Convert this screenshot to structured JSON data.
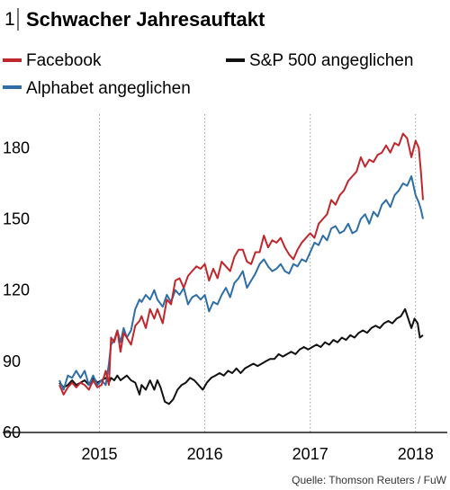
{
  "chart_data": {
    "type": "line",
    "figure_number": "1",
    "title": "Schwacher Jahresauftakt",
    "source": "Quelle: Thomson Reuters / FuW",
    "ylim": [
      60,
      190
    ],
    "yticks": [
      60,
      90,
      120,
      150,
      180
    ],
    "xlim": [
      2014.6,
      2018.15
    ],
    "xticks": [
      {
        "label": "2015",
        "x": 2015.0
      },
      {
        "label": "2016",
        "x": 2016.0
      },
      {
        "label": "2017",
        "x": 2017.0
      },
      {
        "label": "2018",
        "x": 2018.0
      }
    ],
    "grid": "vertical-at-ticks",
    "legend_position": "top",
    "series": [
      {
        "name": "Facebook",
        "color": "#c0272d",
        "points": [
          [
            2014.62,
            80
          ],
          [
            2014.66,
            76
          ],
          [
            2014.7,
            79
          ],
          [
            2014.74,
            81
          ],
          [
            2014.78,
            79
          ],
          [
            2014.82,
            81
          ],
          [
            2014.86,
            80
          ],
          [
            2014.9,
            78
          ],
          [
            2014.94,
            82
          ],
          [
            2014.98,
            79
          ],
          [
            2015.02,
            80
          ],
          [
            2015.06,
            86
          ],
          [
            2015.09,
            80
          ],
          [
            2015.11,
            100
          ],
          [
            2015.14,
            98
          ],
          [
            2015.17,
            103
          ],
          [
            2015.2,
            94
          ],
          [
            2015.23,
            102
          ],
          [
            2015.26,
            100
          ],
          [
            2015.3,
            97
          ],
          [
            2015.34,
            105
          ],
          [
            2015.38,
            107
          ],
          [
            2015.4,
            109
          ],
          [
            2015.44,
            104
          ],
          [
            2015.48,
            112
          ],
          [
            2015.52,
            108
          ],
          [
            2015.55,
            112
          ],
          [
            2015.6,
            106
          ],
          [
            2015.64,
            116
          ],
          [
            2015.68,
            114
          ],
          [
            2015.72,
            124
          ],
          [
            2015.76,
            125
          ],
          [
            2015.8,
            121
          ],
          [
            2015.84,
            126
          ],
          [
            2015.88,
            128
          ],
          [
            2015.92,
            130
          ],
          [
            2015.96,
            129
          ],
          [
            2016.0,
            131
          ],
          [
            2016.04,
            124
          ],
          [
            2016.08,
            129
          ],
          [
            2016.12,
            125
          ],
          [
            2016.16,
            132
          ],
          [
            2016.2,
            130
          ],
          [
            2016.24,
            128
          ],
          [
            2016.28,
            134
          ],
          [
            2016.32,
            137
          ],
          [
            2016.36,
            137
          ],
          [
            2016.4,
            132
          ],
          [
            2016.44,
            131
          ],
          [
            2016.48,
            136
          ],
          [
            2016.52,
            136
          ],
          [
            2016.56,
            143
          ],
          [
            2016.6,
            138
          ],
          [
            2016.64,
            141
          ],
          [
            2016.68,
            140
          ],
          [
            2016.72,
            142
          ],
          [
            2016.76,
            138
          ],
          [
            2016.8,
            135
          ],
          [
            2016.84,
            133
          ],
          [
            2016.88,
            137
          ],
          [
            2016.92,
            140
          ],
          [
            2016.96,
            142
          ],
          [
            2017.0,
            144
          ],
          [
            2017.04,
            142
          ],
          [
            2017.08,
            148
          ],
          [
            2017.12,
            150
          ],
          [
            2017.16,
            152
          ],
          [
            2017.2,
            158
          ],
          [
            2017.24,
            156
          ],
          [
            2017.28,
            160
          ],
          [
            2017.32,
            162
          ],
          [
            2017.36,
            166
          ],
          [
            2017.4,
            168
          ],
          [
            2017.44,
            170
          ],
          [
            2017.48,
            176
          ],
          [
            2017.52,
            172
          ],
          [
            2017.56,
            175
          ],
          [
            2017.6,
            174
          ],
          [
            2017.64,
            177
          ],
          [
            2017.68,
            178
          ],
          [
            2017.72,
            181
          ],
          [
            2017.76,
            178
          ],
          [
            2017.8,
            182
          ],
          [
            2017.84,
            181
          ],
          [
            2017.88,
            186
          ],
          [
            2017.92,
            184
          ],
          [
            2017.96,
            176
          ],
          [
            2018.0,
            183
          ],
          [
            2018.03,
            180
          ],
          [
            2018.05,
            170
          ],
          [
            2018.07,
            158
          ]
        ]
      },
      {
        "name": "Alphabet angeglichen",
        "color": "#2e6ea6",
        "points": [
          [
            2014.62,
            82
          ],
          [
            2014.66,
            78
          ],
          [
            2014.7,
            84
          ],
          [
            2014.74,
            83
          ],
          [
            2014.78,
            86
          ],
          [
            2014.82,
            83
          ],
          [
            2014.86,
            86
          ],
          [
            2014.9,
            80
          ],
          [
            2014.94,
            84
          ],
          [
            2014.98,
            80
          ],
          [
            2015.02,
            82
          ],
          [
            2015.06,
            80
          ],
          [
            2015.09,
            89
          ],
          [
            2015.11,
            97
          ],
          [
            2015.14,
            99
          ],
          [
            2015.17,
            103
          ],
          [
            2015.2,
            98
          ],
          [
            2015.23,
            104
          ],
          [
            2015.26,
            100
          ],
          [
            2015.3,
            103
          ],
          [
            2015.34,
            112
          ],
          [
            2015.38,
            116
          ],
          [
            2015.4,
            115
          ],
          [
            2015.44,
            118
          ],
          [
            2015.48,
            116
          ],
          [
            2015.52,
            120
          ],
          [
            2015.55,
            116
          ],
          [
            2015.6,
            113
          ],
          [
            2015.64,
            118
          ],
          [
            2015.68,
            115
          ],
          [
            2015.72,
            120
          ],
          [
            2015.76,
            118
          ],
          [
            2015.8,
            121
          ],
          [
            2015.84,
            114
          ],
          [
            2015.88,
            117
          ],
          [
            2015.92,
            118
          ],
          [
            2015.96,
            116
          ],
          [
            2016.0,
            118
          ],
          [
            2016.04,
            111
          ],
          [
            2016.08,
            115
          ],
          [
            2016.12,
            114
          ],
          [
            2016.16,
            118
          ],
          [
            2016.2,
            121
          ],
          [
            2016.24,
            117
          ],
          [
            2016.28,
            123
          ],
          [
            2016.32,
            125
          ],
          [
            2016.36,
            128
          ],
          [
            2016.4,
            121
          ],
          [
            2016.44,
            124
          ],
          [
            2016.48,
            127
          ],
          [
            2016.52,
            131
          ],
          [
            2016.56,
            133
          ],
          [
            2016.6,
            130
          ],
          [
            2016.64,
            128
          ],
          [
            2016.68,
            129
          ],
          [
            2016.72,
            131
          ],
          [
            2016.76,
            128
          ],
          [
            2016.8,
            127
          ],
          [
            2016.84,
            131
          ],
          [
            2016.88,
            130
          ],
          [
            2016.92,
            133
          ],
          [
            2016.96,
            132
          ],
          [
            2017.0,
            136
          ],
          [
            2017.04,
            140
          ],
          [
            2017.08,
            139
          ],
          [
            2017.12,
            143
          ],
          [
            2017.16,
            141
          ],
          [
            2017.2,
            146
          ],
          [
            2017.24,
            147
          ],
          [
            2017.28,
            144
          ],
          [
            2017.32,
            145
          ],
          [
            2017.36,
            148
          ],
          [
            2017.4,
            144
          ],
          [
            2017.44,
            145
          ],
          [
            2017.48,
            150
          ],
          [
            2017.52,
            152
          ],
          [
            2017.56,
            148
          ],
          [
            2017.6,
            153
          ],
          [
            2017.64,
            151
          ],
          [
            2017.68,
            156
          ],
          [
            2017.72,
            158
          ],
          [
            2017.76,
            155
          ],
          [
            2017.8,
            160
          ],
          [
            2017.84,
            162
          ],
          [
            2017.88,
            165
          ],
          [
            2017.92,
            164
          ],
          [
            2017.96,
            168
          ],
          [
            2018.0,
            160
          ],
          [
            2018.03,
            157
          ],
          [
            2018.05,
            154
          ],
          [
            2018.07,
            150
          ]
        ]
      },
      {
        "name": "S&P 500 angeglichen",
        "color": "#111111",
        "points": [
          [
            2014.62,
            81
          ],
          [
            2014.66,
            79
          ],
          [
            2014.7,
            80
          ],
          [
            2014.74,
            82
          ],
          [
            2014.78,
            80
          ],
          [
            2014.82,
            81
          ],
          [
            2014.86,
            82
          ],
          [
            2014.9,
            80
          ],
          [
            2014.94,
            83
          ],
          [
            2014.98,
            81
          ],
          [
            2015.02,
            82
          ],
          [
            2015.06,
            83
          ],
          [
            2015.09,
            81
          ],
          [
            2015.11,
            83
          ],
          [
            2015.14,
            82
          ],
          [
            2015.17,
            84
          ],
          [
            2015.2,
            82
          ],
          [
            2015.23,
            83
          ],
          [
            2015.26,
            84
          ],
          [
            2015.3,
            82
          ],
          [
            2015.34,
            81
          ],
          [
            2015.38,
            76
          ],
          [
            2015.4,
            80
          ],
          [
            2015.44,
            78
          ],
          [
            2015.48,
            82
          ],
          [
            2015.52,
            78
          ],
          [
            2015.55,
            82
          ],
          [
            2015.58,
            79
          ],
          [
            2015.62,
            73
          ],
          [
            2015.66,
            72
          ],
          [
            2015.7,
            74
          ],
          [
            2015.74,
            78
          ],
          [
            2015.78,
            80
          ],
          [
            2015.82,
            81
          ],
          [
            2015.86,
            83
          ],
          [
            2015.9,
            82
          ],
          [
            2015.94,
            80
          ],
          [
            2015.98,
            78
          ],
          [
            2016.02,
            81
          ],
          [
            2016.06,
            83
          ],
          [
            2016.1,
            84
          ],
          [
            2016.14,
            85
          ],
          [
            2016.18,
            84
          ],
          [
            2016.22,
            86
          ],
          [
            2016.26,
            85
          ],
          [
            2016.3,
            87
          ],
          [
            2016.34,
            85
          ],
          [
            2016.38,
            87
          ],
          [
            2016.42,
            88
          ],
          [
            2016.46,
            89
          ],
          [
            2016.5,
            88
          ],
          [
            2016.54,
            89
          ],
          [
            2016.58,
            90
          ],
          [
            2016.62,
            91
          ],
          [
            2016.66,
            91
          ],
          [
            2016.7,
            93
          ],
          [
            2016.74,
            92
          ],
          [
            2016.78,
            93
          ],
          [
            2016.82,
            94
          ],
          [
            2016.86,
            93
          ],
          [
            2016.9,
            95
          ],
          [
            2016.94,
            96
          ],
          [
            2016.98,
            95
          ],
          [
            2017.02,
            96
          ],
          [
            2017.06,
            97
          ],
          [
            2017.1,
            96
          ],
          [
            2017.14,
            98
          ],
          [
            2017.18,
            97
          ],
          [
            2017.22,
            99
          ],
          [
            2017.26,
            98
          ],
          [
            2017.3,
            100
          ],
          [
            2017.34,
            99
          ],
          [
            2017.38,
            101
          ],
          [
            2017.42,
            100
          ],
          [
            2017.46,
            102
          ],
          [
            2017.5,
            103
          ],
          [
            2017.54,
            102
          ],
          [
            2017.58,
            104
          ],
          [
            2017.62,
            105
          ],
          [
            2017.66,
            104
          ],
          [
            2017.7,
            106
          ],
          [
            2017.74,
            107
          ],
          [
            2017.78,
            106
          ],
          [
            2017.82,
            108
          ],
          [
            2017.86,
            109
          ],
          [
            2017.9,
            112
          ],
          [
            2017.93,
            108
          ],
          [
            2017.96,
            104
          ],
          [
            2017.99,
            108
          ],
          [
            2018.02,
            106
          ],
          [
            2018.04,
            100
          ],
          [
            2018.07,
            101
          ]
        ]
      }
    ]
  }
}
